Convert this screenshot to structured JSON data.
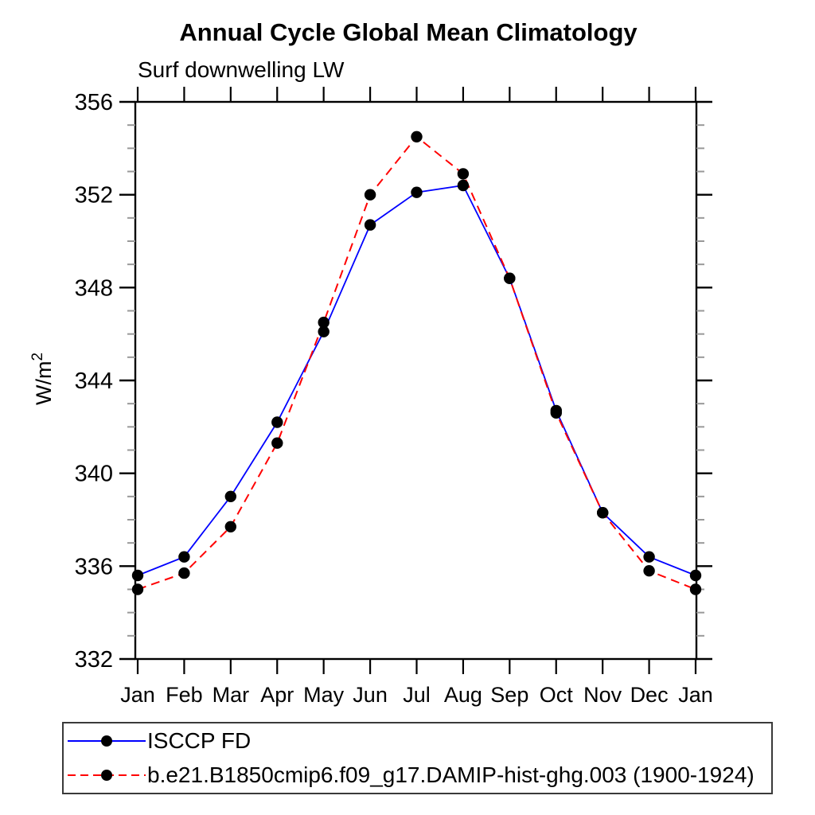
{
  "chart_data": {
    "type": "line",
    "title": "Annual Cycle Global Mean Climatology",
    "subtitle": "Surf downwelling LW",
    "ylabel_main": "W/m",
    "ylabel_sup": "2",
    "ylim": [
      332,
      356
    ],
    "yticks_major": [
      332,
      336,
      340,
      344,
      348,
      352,
      356
    ],
    "ytick_minor_step": 1,
    "grid": false,
    "legend_position": "bottom-left-box",
    "categories": [
      "Jan",
      "Feb",
      "Mar",
      "Apr",
      "May",
      "Jun",
      "Jul",
      "Aug",
      "Sep",
      "Oct",
      "Nov",
      "Dec",
      "Jan"
    ],
    "axis_color": "#000000",
    "minor_tick_color": "#999999",
    "marker_color": "#000000",
    "series": [
      {
        "name": "ISCCP FD",
        "color": "#0000ff",
        "line_style": "solid",
        "marker": "filled-circle",
        "values": [
          335.6,
          336.4,
          339.0,
          342.2,
          346.1,
          350.7,
          352.1,
          352.4,
          348.4,
          342.7,
          338.3,
          336.4,
          335.6
        ]
      },
      {
        "name": "b.e21.B1850cmip6.f09_g17.DAMIP-hist-ghg.003 (1900-1924)",
        "color": "#ff0000",
        "line_style": "dashed",
        "marker": "filled-circle",
        "values": [
          335.0,
          335.7,
          337.7,
          341.3,
          346.5,
          352.0,
          354.5,
          352.9,
          348.4,
          342.6,
          338.3,
          335.8,
          335.0
        ]
      }
    ]
  }
}
